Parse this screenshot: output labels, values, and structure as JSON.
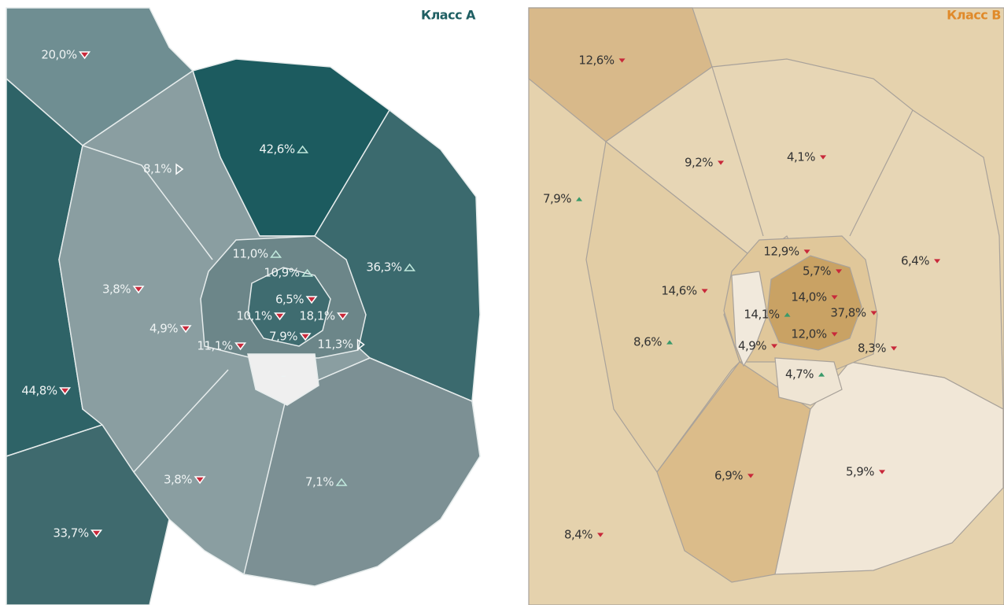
{
  "maps": [
    {
      "title": "Класс А",
      "title_color": "#1f5f63",
      "label_color": "#eef3f3",
      "regions": [
        {
          "label": "20,0%",
          "trend": "down"
        },
        {
          "label": "8,1%",
          "trend": "right"
        },
        {
          "label": "42,6%",
          "trend": "up"
        },
        {
          "label": "3,8%",
          "trend": "down"
        },
        {
          "label": "44,8%",
          "trend": "down"
        },
        {
          "label": "33,7%",
          "trend": "down"
        },
        {
          "label": "36,3%",
          "trend": "up"
        },
        {
          "label": "11,0%",
          "trend": "up"
        },
        {
          "label": "10,9%",
          "trend": "up"
        },
        {
          "label": "6,5%",
          "trend": "down"
        },
        {
          "label": "4,9%",
          "trend": "down"
        },
        {
          "label": "10,1%",
          "trend": "down"
        },
        {
          "label": "18,1%",
          "trend": "down"
        },
        {
          "label": "11,1%",
          "trend": "down"
        },
        {
          "label": "7,9%",
          "trend": "down"
        },
        {
          "label": "11,3%",
          "trend": "right"
        },
        {
          "label": "–"
        },
        {
          "label": "3,8%",
          "trend": "down"
        },
        {
          "label": "7,1%",
          "trend": "up"
        }
      ]
    },
    {
      "title": "Класс В",
      "title_color": "#e08a2a",
      "label_color": "#333333",
      "regions": [
        {
          "label": "12,6%",
          "trend": "down"
        },
        {
          "label": "9,2%",
          "trend": "down"
        },
        {
          "label": "4,1%",
          "trend": "down"
        },
        {
          "label": "7,9%",
          "trend": "up"
        },
        {
          "label": "12,9%",
          "trend": "down"
        },
        {
          "label": "5,7%",
          "trend": "down"
        },
        {
          "label": "6,4%",
          "trend": "down"
        },
        {
          "label": "14,6%",
          "trend": "down"
        },
        {
          "label": "14,0%",
          "trend": "down"
        },
        {
          "label": "14,1%",
          "trend": "up"
        },
        {
          "label": "37,8%",
          "trend": "down"
        },
        {
          "label": "8,6%",
          "trend": "up"
        },
        {
          "label": "4,9%",
          "trend": "down"
        },
        {
          "label": "12,0%",
          "trend": "down"
        },
        {
          "label": "8,3%",
          "trend": "down"
        },
        {
          "label": "4,7%",
          "trend": "up"
        },
        {
          "label": "6,9%",
          "trend": "down"
        },
        {
          "label": "5,9%",
          "trend": "down"
        },
        {
          "label": "8,4%",
          "trend": "down"
        }
      ]
    }
  ]
}
